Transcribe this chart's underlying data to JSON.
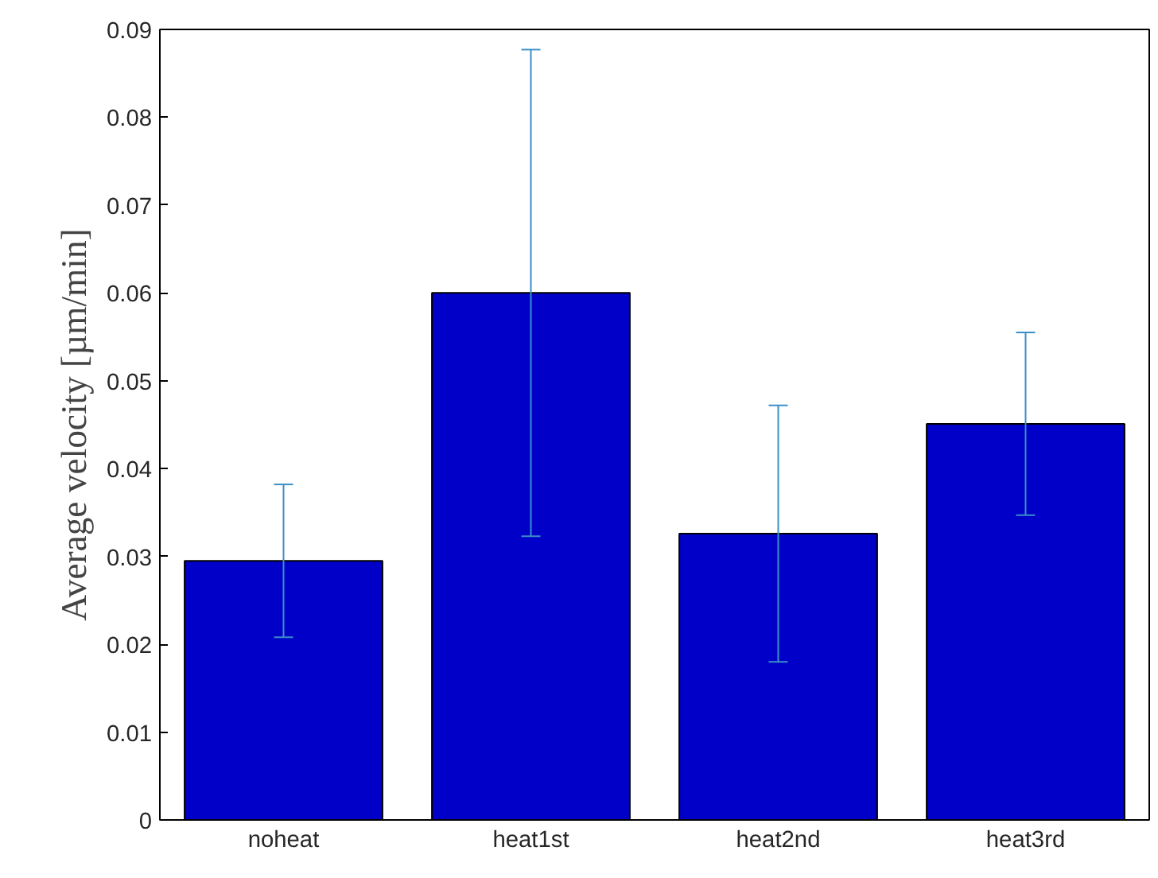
{
  "chart_data": {
    "type": "bar",
    "ylabel": "Average velocity [µm/min]",
    "categories": [
      "noheat",
      "heat1st",
      "heat2nd",
      "heat3rd"
    ],
    "values": [
      0.0295,
      0.06,
      0.0326,
      0.0451
    ],
    "errors": [
      0.0087,
      0.0277,
      0.0146,
      0.0104
    ],
    "color": "#0000c8",
    "ylim": [
      0,
      0.09
    ],
    "yticks": [
      0,
      0.01,
      0.02,
      0.03,
      0.04,
      0.05,
      0.06,
      0.07,
      0.08,
      0.09
    ],
    "grid": false
  }
}
